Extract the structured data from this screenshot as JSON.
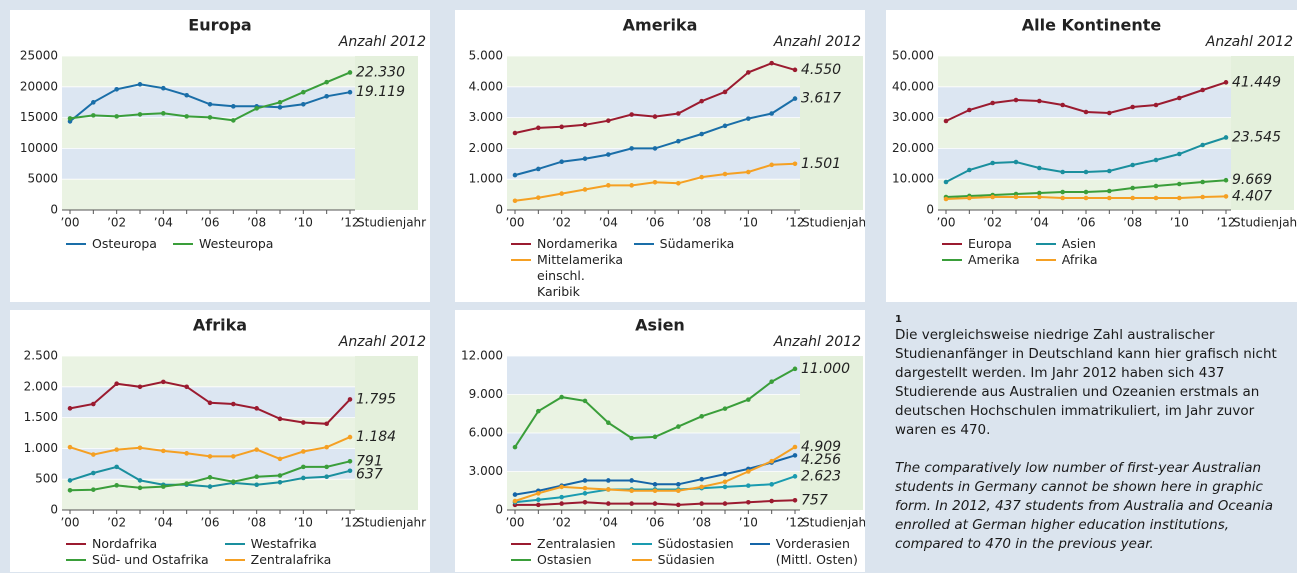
{
  "chart_data": [
    {
      "type": "line",
      "title": "Europa",
      "subtitle": "Anzahl 2012",
      "x_label": "Studienjahr",
      "categories": [
        "’00",
        null,
        "’02",
        null,
        "’04",
        null,
        "’06",
        null,
        "’08",
        null,
        "’10",
        null,
        "’12"
      ],
      "ylim": [
        0,
        25000
      ],
      "yticks": [
        0,
        5000,
        10000,
        15000,
        20000,
        25000
      ],
      "series": [
        {
          "name": "Osteuropa",
          "color": "#1a6ea8",
          "values": [
            14380,
            17480,
            19600,
            20400,
            19770,
            18630,
            17160,
            16830,
            16830,
            16670,
            17160,
            18460,
            19119
          ],
          "value_labels": [
            null,
            null,
            null,
            null,
            null,
            null,
            null,
            null,
            null,
            null,
            null,
            null,
            "19.119"
          ]
        },
        {
          "name": "Westeuropa",
          "color": "#3a9e3a",
          "values": [
            14870,
            15360,
            15200,
            15520,
            15690,
            15200,
            15030,
            14540,
            16500,
            17480,
            19120,
            20750,
            22330
          ],
          "value_labels": [
            null,
            null,
            null,
            null,
            null,
            null,
            null,
            null,
            null,
            null,
            null,
            null,
            "22.330"
          ]
        }
      ]
    },
    {
      "type": "line",
      "title": "Amerika",
      "subtitle": "Anzahl 2012",
      "x_label": "Studienjahr",
      "categories": [
        "’00",
        null,
        "’02",
        null,
        "’04",
        null,
        "’06",
        null,
        "’08",
        null,
        "’10",
        null,
        "’12"
      ],
      "ylim": [
        0,
        5000
      ],
      "yticks": [
        0,
        {
          "value": 1000,
          "label": "1.000"
        },
        {
          "value": 2000,
          "label": "2.000"
        },
        {
          "value": 3000,
          "label": "3.000"
        },
        {
          "value": 4000,
          "label": "4.000"
        },
        {
          "value": 5000,
          "label": "5.000"
        }
      ],
      "series": [
        {
          "name": "Nordamerika",
          "color": "#9b1b30",
          "values": [
            2500,
            2667,
            2700,
            2767,
            2900,
            3100,
            3033,
            3133,
            3533,
            3833,
            4467,
            4767,
            4550
          ],
          "value_labels": [
            null,
            null,
            null,
            null,
            null,
            null,
            null,
            null,
            null,
            null,
            null,
            null,
            "4.550"
          ]
        },
        {
          "name": "Südamerika",
          "color": "#1a6ea8",
          "values": [
            1133,
            1333,
            1567,
            1667,
            1800,
            2000,
            2000,
            2233,
            2467,
            2733,
            2967,
            3133,
            3617
          ],
          "value_labels": [
            null,
            null,
            null,
            null,
            null,
            null,
            null,
            null,
            null,
            null,
            null,
            null,
            "3.617"
          ]
        },
        {
          "name": "Mittelamerika einschl. Karibik",
          "color": "#f5a023",
          "values": [
            300,
            400,
            533,
            667,
            800,
            800,
            900,
            867,
            1067,
            1167,
            1233,
            1467,
            1501
          ],
          "value_labels": [
            null,
            null,
            null,
            null,
            null,
            null,
            null,
            null,
            null,
            null,
            null,
            null,
            "1.501"
          ]
        }
      ]
    },
    {
      "type": "line",
      "title": "Alle Kontinente",
      "subtitle": "Anzahl 2012",
      "x_label": "Studienjahr",
      "categories": [
        "’00",
        null,
        "’02",
        null,
        "’04",
        null,
        "’06",
        null,
        "’08",
        null,
        "’10",
        null,
        "’12"
      ],
      "ylim": [
        0,
        50000
      ],
      "yticks": [
        0,
        {
          "value": 10000,
          "label": "10.000"
        },
        {
          "value": 20000,
          "label": "20.000"
        },
        {
          "value": 30000,
          "label": "30.000"
        },
        {
          "value": 40000,
          "label": "40.000"
        },
        {
          "value": 50000,
          "label": "50.000"
        }
      ],
      "series": [
        {
          "name": "Europa",
          "color": "#9b1b30",
          "values": [
            28900,
            32470,
            34740,
            35710,
            35390,
            34090,
            31820,
            31490,
            33440,
            34090,
            36360,
            38960,
            41449
          ],
          "value_labels": [
            null,
            null,
            null,
            null,
            null,
            null,
            null,
            null,
            null,
            null,
            null,
            null,
            "41.449"
          ]
        },
        {
          "name": "Asien",
          "color": "#1a8f9e",
          "values": [
            9090,
            12990,
            15260,
            15580,
            13640,
            12340,
            12340,
            12660,
            14610,
            16230,
            18180,
            21100,
            23545
          ],
          "value_labels": [
            null,
            null,
            null,
            null,
            null,
            null,
            null,
            null,
            null,
            null,
            null,
            null,
            "23.545"
          ]
        },
        {
          "name": "Amerika",
          "color": "#3a9e3a",
          "values": [
            4220,
            4550,
            4870,
            5190,
            5520,
            5840,
            5840,
            6170,
            7140,
            7790,
            8440,
            9090,
            9669
          ],
          "value_labels": [
            null,
            null,
            null,
            null,
            null,
            null,
            null,
            null,
            null,
            null,
            null,
            null,
            "9.669"
          ]
        },
        {
          "name": "Afrika",
          "color": "#f5a023",
          "values": [
            3570,
            3900,
            4220,
            4220,
            4220,
            3900,
            3900,
            3900,
            3900,
            3900,
            3900,
            4220,
            4407
          ],
          "value_labels": [
            null,
            null,
            null,
            null,
            null,
            null,
            null,
            null,
            null,
            null,
            null,
            null,
            "4.407"
          ]
        }
      ]
    },
    {
      "type": "line",
      "title": "Afrika",
      "subtitle": "Anzahl 2012",
      "x_label": "Studienjahr",
      "categories": [
        "’00",
        null,
        "’02",
        null,
        "’04",
        null,
        "’06",
        null,
        "’08",
        null,
        "’10",
        null,
        "’12"
      ],
      "ylim": [
        0,
        2500
      ],
      "yticks": [
        0,
        500,
        {
          "value": 1000,
          "label": "1.000"
        },
        {
          "value": 1500,
          "label": "1.500"
        },
        {
          "value": 2000,
          "label": "2.000"
        },
        {
          "value": 2500,
          "label": "2.500"
        }
      ],
      "series": [
        {
          "name": "Nordafrika",
          "color": "#9b1b30",
          "values": [
            1650,
            1720,
            2050,
            2000,
            2080,
            2000,
            1740,
            1720,
            1650,
            1480,
            1420,
            1400,
            1795
          ],
          "value_labels": [
            null,
            null,
            null,
            null,
            null,
            null,
            null,
            null,
            null,
            null,
            null,
            null,
            "1.795"
          ]
        },
        {
          "name": "Westafrika",
          "color": "#1a8f9e",
          "values": [
            480,
            600,
            700,
            480,
            410,
            410,
            380,
            440,
            410,
            450,
            520,
            540,
            637
          ],
          "value_labels": [
            null,
            null,
            null,
            null,
            null,
            null,
            null,
            null,
            null,
            null,
            null,
            null,
            "637"
          ]
        },
        {
          "name": "Süd- und Ostafrika",
          "color": "#3a9e3a",
          "values": [
            320,
            330,
            400,
            360,
            380,
            430,
            530,
            460,
            540,
            560,
            700,
            700,
            791
          ],
          "value_labels": [
            null,
            null,
            null,
            null,
            null,
            null,
            null,
            null,
            null,
            null,
            null,
            null,
            "791"
          ]
        },
        {
          "name": "Zentralafrika",
          "color": "#f5a023",
          "values": [
            1020,
            900,
            980,
            1010,
            960,
            920,
            870,
            870,
            980,
            830,
            950,
            1020,
            1184
          ],
          "value_labels": [
            null,
            null,
            null,
            null,
            null,
            null,
            null,
            null,
            null,
            null,
            null,
            null,
            "1.184"
          ]
        }
      ]
    },
    {
      "type": "line",
      "title": "Asien",
      "subtitle": "Anzahl 2012",
      "x_label": "Studienjahr",
      "categories": [
        "’00",
        null,
        "’02",
        null,
        "’04",
        null,
        "’06",
        null,
        "’08",
        null,
        "’10",
        null,
        "’12"
      ],
      "ylim": [
        0,
        12000
      ],
      "yticks": [
        0,
        {
          "value": 3000,
          "label": "3.000"
        },
        {
          "value": 6000,
          "label": "6.000"
        },
        {
          "value": 9000,
          "label": "9.000"
        },
        {
          "value": 12000,
          "label": "12.000"
        }
      ],
      "series": [
        {
          "name": "Zentralasien",
          "color": "#9b1b30",
          "values": [
            400,
            400,
            500,
            600,
            500,
            500,
            500,
            400,
            500,
            500,
            600,
            700,
            757
          ],
          "value_labels": [
            null,
            null,
            null,
            null,
            null,
            null,
            null,
            null,
            null,
            null,
            null,
            null,
            "757"
          ]
        },
        {
          "name": "Südostasien",
          "color": "#1a9bb0",
          "values": [
            600,
            800,
            1000,
            1300,
            1600,
            1600,
            1600,
            1600,
            1700,
            1800,
            1900,
            2000,
            2623
          ],
          "value_labels": [
            null,
            null,
            null,
            null,
            null,
            null,
            null,
            null,
            null,
            null,
            null,
            null,
            "2.623"
          ]
        },
        {
          "name": "Vorderasien (Mittl. Osten)",
          "color": "#1565a8",
          "values": [
            1200,
            1500,
            1900,
            2300,
            2300,
            2300,
            2000,
            2000,
            2400,
            2800,
            3200,
            3700,
            4256
          ],
          "value_labels": [
            null,
            null,
            null,
            null,
            null,
            null,
            null,
            null,
            null,
            null,
            null,
            null,
            "4.256"
          ]
        },
        {
          "name": "Ostasien",
          "color": "#3a9e3a",
          "values": [
            4900,
            7700,
            8800,
            8500,
            6800,
            5600,
            5700,
            6500,
            7300,
            7900,
            8600,
            10000,
            11000
          ],
          "value_labels": [
            null,
            null,
            null,
            null,
            null,
            null,
            null,
            null,
            null,
            null,
            null,
            null,
            "11.000"
          ]
        },
        {
          "name": "Südasien",
          "color": "#f5a023",
          "values": [
            700,
            1300,
            1800,
            1700,
            1600,
            1500,
            1500,
            1500,
            1800,
            2200,
            3000,
            3800,
            4909
          ],
          "value_labels": [
            null,
            null,
            null,
            null,
            null,
            null,
            null,
            null,
            null,
            null,
            null,
            null,
            "4.909"
          ]
        }
      ]
    }
  ],
  "note": {
    "marker": "1",
    "german": "Die vergleichsweise niedrige Zahl australischer Studienanfänger in Deutschland kann hier grafisch nicht dargestellt werden. Im Jahr 2012 haben sich 437 Studierende aus Australien und Ozeanien erstmals an deutschen Hochschulen immatrikuliert, im Jahr zuvor waren es 470.",
    "english": "The comparatively low number of first-year Australian students in Germany cannot be shown here in graphic form. In 2012, 437 students from Australia and Oceania enrolled at German higher education institutions, compared to 470 in the previous year."
  }
}
